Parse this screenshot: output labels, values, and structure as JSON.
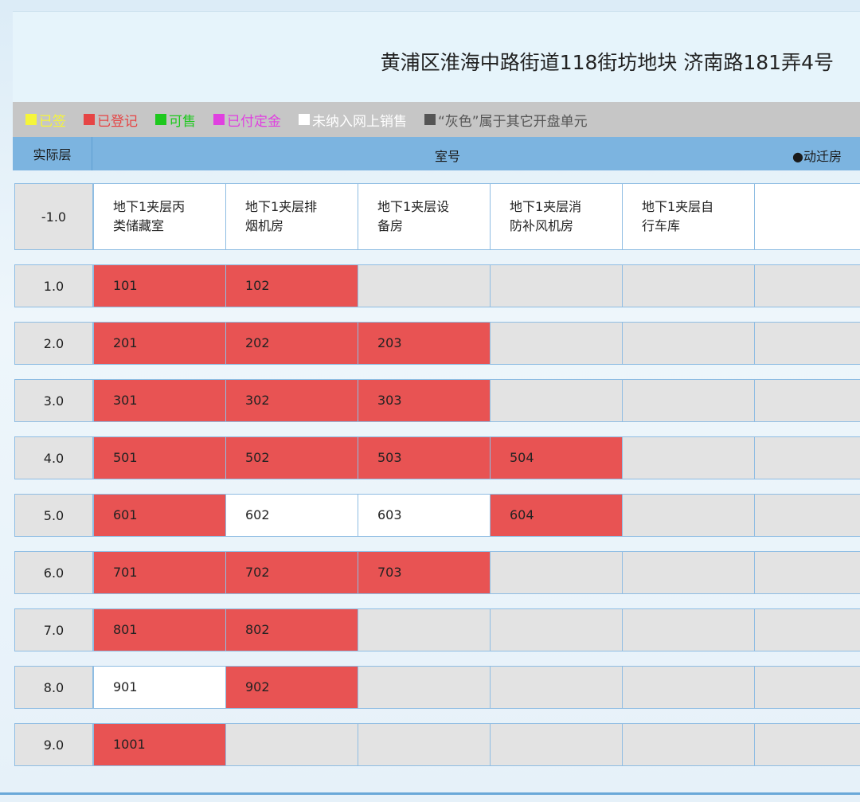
{
  "header": {
    "title": "黄浦区淮海中路街道118街坊地块 济南路181弄4号"
  },
  "legend": [
    {
      "label": "已签",
      "color": "#f5f53a"
    },
    {
      "label": "已登记",
      "color": "#e64545"
    },
    {
      "label": "可售",
      "color": "#1ec81e"
    },
    {
      "label": "已付定金",
      "color": "#e040e0"
    },
    {
      "label": "未纳入网上销售",
      "color": "#ffffff"
    },
    {
      "label": "“灰色”属于其它开盘单元",
      "color": "#555555"
    }
  ],
  "table": {
    "columns": [
      "实际层",
      "室号",
      "●动迁房"
    ],
    "rows": [
      {
        "floor": "-1.0",
        "cells": [
          {
            "text": "地下1夹层丙类储藏室",
            "color": "#ffffff"
          },
          {
            "text": "地下1夹层排烟机房",
            "color": "#ffffff"
          },
          {
            "text": "地下1夹层设备房",
            "color": "#ffffff"
          },
          {
            "text": "地下1夹层消防补风机房",
            "color": "#ffffff"
          },
          {
            "text": "地下1夹层自行车库",
            "color": "#ffffff"
          },
          {
            "color": "#ffffff"
          }
        ]
      },
      {
        "floor": "1.0",
        "cells": [
          {
            "text": "101",
            "color": "#e85353"
          },
          {
            "text": "102",
            "color": "#e85353"
          },
          {
            "color": "#e3e3e3"
          },
          {
            "color": "#e3e3e3"
          },
          {
            "color": "#e3e3e3"
          },
          {
            "color": "#e3e3e3"
          }
        ]
      },
      {
        "floor": "2.0",
        "cells": [
          {
            "text": "201",
            "color": "#e85353"
          },
          {
            "text": "202",
            "color": "#e85353"
          },
          {
            "text": "203",
            "color": "#e85353"
          },
          {
            "color": "#e3e3e3"
          },
          {
            "color": "#e3e3e3"
          },
          {
            "color": "#e3e3e3"
          }
        ]
      },
      {
        "floor": "3.0",
        "cells": [
          {
            "text": "301",
            "color": "#e85353"
          },
          {
            "text": "302",
            "color": "#e85353"
          },
          {
            "text": "303",
            "color": "#e85353"
          },
          {
            "color": "#e3e3e3"
          },
          {
            "color": "#e3e3e3"
          },
          {
            "color": "#e3e3e3"
          }
        ]
      },
      {
        "floor": "4.0",
        "cells": [
          {
            "text": "501",
            "color": "#e85353"
          },
          {
            "text": "502",
            "color": "#e85353"
          },
          {
            "text": "503",
            "color": "#e85353"
          },
          {
            "text": "504",
            "color": "#e85353"
          },
          {
            "color": "#e3e3e3"
          },
          {
            "color": "#e3e3e3"
          }
        ]
      },
      {
        "floor": "5.0",
        "cells": [
          {
            "text": "601",
            "color": "#e85353"
          },
          {
            "text": "602",
            "color": "#ffffff"
          },
          {
            "text": "603",
            "color": "#ffffff"
          },
          {
            "text": "604",
            "color": "#e85353"
          },
          {
            "color": "#e3e3e3"
          },
          {
            "color": "#e3e3e3"
          }
        ]
      },
      {
        "floor": "6.0",
        "cells": [
          {
            "text": "701",
            "color": "#e85353"
          },
          {
            "text": "702",
            "color": "#e85353"
          },
          {
            "text": "703",
            "color": "#e85353"
          },
          {
            "color": "#e3e3e3"
          },
          {
            "color": "#e3e3e3"
          },
          {
            "color": "#e3e3e3"
          }
        ]
      },
      {
        "floor": "7.0",
        "cells": [
          {
            "text": "801",
            "color": "#e85353"
          },
          {
            "text": "802",
            "color": "#e85353"
          },
          {
            "color": "#e3e3e3"
          },
          {
            "color": "#e3e3e3"
          },
          {
            "color": "#e3e3e3"
          },
          {
            "color": "#e3e3e3"
          }
        ]
      },
      {
        "floor": "8.0",
        "cells": [
          {
            "text": "901",
            "color": "#ffffff"
          },
          {
            "text": "902",
            "color": "#e85353"
          },
          {
            "color": "#e3e3e3"
          },
          {
            "color": "#e3e3e3"
          },
          {
            "color": "#e3e3e3"
          },
          {
            "color": "#e3e3e3"
          }
        ]
      },
      {
        "floor": "9.0",
        "cells": [
          {
            "text": "1001",
            "color": "#e85353"
          },
          {
            "color": "#e3e3e3"
          },
          {
            "color": "#e3e3e3"
          },
          {
            "color": "#e3e3e3"
          },
          {
            "color": "#e3e3e3"
          },
          {
            "color": "#e3e3e3"
          }
        ]
      }
    ]
  }
}
